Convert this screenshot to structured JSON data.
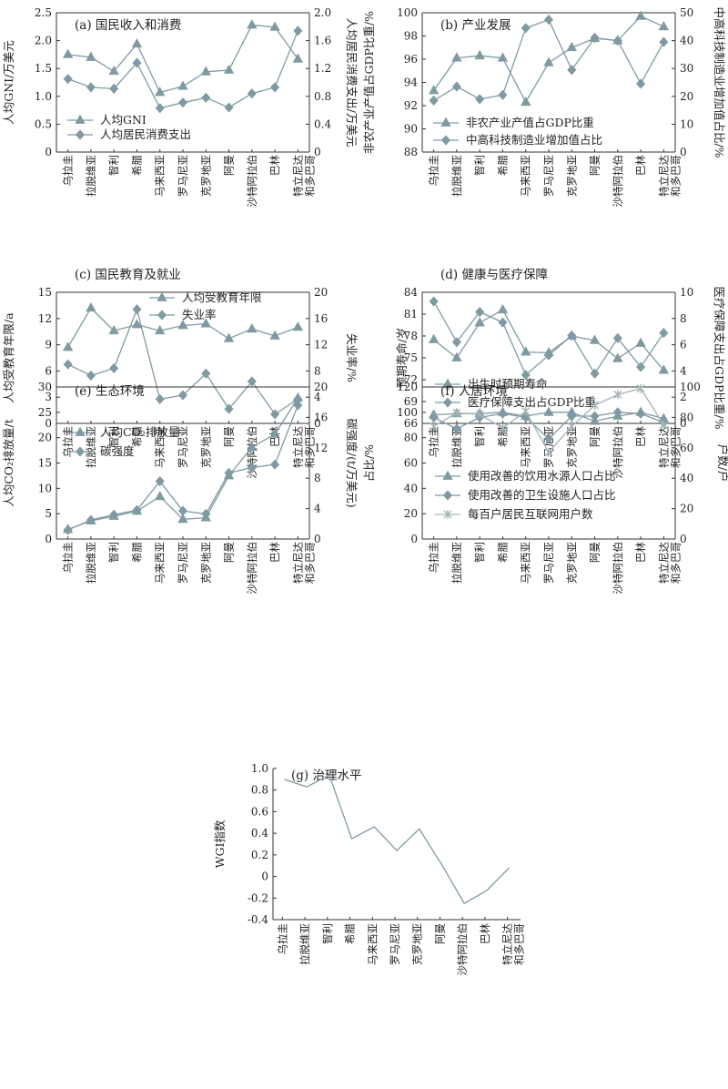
{
  "colors": {
    "series": "#7f9aa3",
    "axis": "#333333",
    "cross": "#a3b3b8"
  },
  "chart_data": [
    {
      "type": "line",
      "title": "(a) 国民收入和消费",
      "categories": [
        "乌拉圭",
        "拉脱维亚",
        "智利",
        "希腊",
        "马来西亚",
        "罗马尼亚",
        "克罗地亚",
        "阿曼",
        "沙特阿拉伯",
        "巴林",
        "特立尼达和多巴哥"
      ],
      "ylabel": "人均GNI/万美元",
      "ylim": [
        0,
        2.5
      ],
      "yticks": [
        "0",
        "0.5",
        "1.0",
        "1.5",
        "2.0",
        "2.5"
      ],
      "y2label": "人均居民消费支出/万美元",
      "y2lim": [
        0,
        2.0
      ],
      "y2ticks": [
        "0",
        "0.4",
        "0.8",
        "1.2",
        "1.6",
        "2.0"
      ],
      "series": [
        {
          "name": "人均GNI",
          "axis": "left",
          "marker": "triangle",
          "values": [
            1.75,
            1.7,
            1.45,
            1.94,
            1.07,
            1.18,
            1.44,
            1.47,
            2.28,
            2.24,
            1.67
          ]
        },
        {
          "name": "人均居民消费支出",
          "axis": "right",
          "marker": "diamond",
          "values": [
            1.05,
            0.93,
            0.91,
            1.28,
            0.63,
            0.71,
            0.78,
            0.64,
            0.84,
            0.93,
            1.74
          ]
        }
      ]
    },
    {
      "type": "line",
      "title": "(b) 产业发展",
      "categories": [
        "乌拉圭",
        "拉脱维亚",
        "智利",
        "希腊",
        "马来西亚",
        "罗马尼亚",
        "克罗地亚",
        "阿曼",
        "沙特阿拉伯",
        "巴林",
        "特立尼达和多巴哥"
      ],
      "ylabel": "非农产业产值占GDP比重/%",
      "ylim": [
        88,
        100
      ],
      "yticks": [
        "88",
        "90",
        "92",
        "94",
        "96",
        "98",
        "100"
      ],
      "y2label": "中高科技制造业增加值占比/%",
      "y2lim": [
        0,
        50
      ],
      "y2ticks": [
        "0",
        "10",
        "20",
        "30",
        "40",
        "50"
      ],
      "series": [
        {
          "name": "非农产业产值占GDP比重",
          "axis": "left",
          "marker": "triangle",
          "values": [
            93.3,
            96.1,
            96.3,
            96.1,
            92.3,
            95.7,
            97.0,
            97.8,
            97.6,
            99.7,
            98.8
          ]
        },
        {
          "name": "中高科技制造业增加值占比",
          "axis": "right",
          "marker": "diamond",
          "values": [
            18.5,
            23.5,
            19.0,
            20.5,
            44.5,
            47.5,
            29.5,
            41.0,
            40.0,
            24.5,
            39.5
          ]
        }
      ]
    },
    {
      "type": "line",
      "title": "(c) 国民教育及就业",
      "categories": [
        "乌拉圭",
        "拉脱维亚",
        "智利",
        "希腊",
        "马来西亚",
        "罗马尼亚",
        "克罗地亚",
        "阿曼",
        "沙特阿拉伯",
        "巴林",
        "特立尼达和多巴哥"
      ],
      "ylabel": "人均受教育年限/a",
      "ylim": [
        0,
        15
      ],
      "yticks": [
        "0",
        "3",
        "6",
        "9",
        "12",
        "15"
      ],
      "y2label": "失业率/%",
      "y2lim": [
        0,
        20
      ],
      "y2ticks": [
        "0",
        "4",
        "8",
        "12",
        "16",
        "20"
      ],
      "series": [
        {
          "name": "人均受教育年限",
          "axis": "left",
          "marker": "triangle",
          "values": [
            8.7,
            13.2,
            10.6,
            11.3,
            10.6,
            11.2,
            11.4,
            9.7,
            10.8,
            10.0,
            11.0
          ]
        },
        {
          "name": "失业率",
          "axis": "right",
          "marker": "diamond",
          "values": [
            9.0,
            7.3,
            8.4,
            17.4,
            3.7,
            4.3,
            7.6,
            2.2,
            6.4,
            1.4,
            3.7
          ]
        }
      ]
    },
    {
      "type": "line",
      "title": "(d) 健康与医疗保障",
      "categories": [
        "乌拉圭",
        "拉脱维亚",
        "智利",
        "希腊",
        "马来西亚",
        "罗马尼亚",
        "克罗地亚",
        "阿曼",
        "沙特阿拉伯",
        "巴林",
        "特立尼达和多巴哥"
      ],
      "ylabel": "预期寿命/岁",
      "ylim": [
        66,
        84
      ],
      "yticks": [
        "66",
        "69",
        "72",
        "75",
        "78",
        "81",
        "84"
      ],
      "y2label": "医疗保障支出占GDP比重/%",
      "y2lim": [
        0,
        10
      ],
      "y2ticks": [
        "0",
        "2",
        "4",
        "6",
        "8",
        "10"
      ],
      "series": [
        {
          "name": "出生时预期寿命",
          "axis": "left",
          "marker": "triangle",
          "values": [
            77.5,
            75.0,
            79.8,
            81.6,
            75.8,
            75.7,
            78.0,
            77.4,
            74.9,
            77.0,
            73.3
          ]
        },
        {
          "name": "医疗保障支出占GDP比重",
          "axis": "right",
          "marker": "diamond",
          "values": [
            9.3,
            6.2,
            8.5,
            7.7,
            3.7,
            5.2,
            6.7,
            3.8,
            6.5,
            4.3,
            6.9
          ]
        }
      ]
    },
    {
      "type": "line",
      "title": "(e) 生态环境",
      "categories": [
        "乌拉圭",
        "拉脱维亚",
        "智利",
        "希腊",
        "马来西亚",
        "罗马尼亚",
        "克罗地亚",
        "阿曼",
        "沙特阿拉伯",
        "巴林",
        "特立尼达和多巴哥"
      ],
      "ylabel": "人均CO₂排放量/t",
      "ylim": [
        0,
        30
      ],
      "yticks": [
        "0",
        "5",
        "10",
        "15",
        "20",
        "25",
        "30"
      ],
      "y2label": "碳强度/(t/万美元)",
      "y2lim": [
        0,
        20
      ],
      "y2ticks": [
        "0",
        "4",
        "8",
        "12",
        "16",
        "20"
      ],
      "series": [
        {
          "name": "人均CO₂排放量",
          "axis": "left",
          "marker": "triangle",
          "values": [
            1.9,
            3.6,
            4.5,
            5.5,
            8.4,
            3.9,
            4.2,
            12.5,
            18.1,
            20.7,
            27.8
          ]
        },
        {
          "name": "碳强度",
          "axis": "right",
          "marker": "diamond",
          "values": [
            1.2,
            2.5,
            3.2,
            3.8,
            7.6,
            3.7,
            3.3,
            8.7,
            9.4,
            9.8,
            17.6
          ]
        }
      ]
    },
    {
      "type": "line",
      "title": "(f) 人居环境",
      "categories": [
        "乌拉圭",
        "拉脱维亚",
        "智利",
        "希腊",
        "马来西亚",
        "罗马尼亚",
        "克罗地亚",
        "阿曼",
        "沙特阿拉伯",
        "巴林",
        "特立尼达和多巴哥"
      ],
      "ylabel": "占比/%",
      "ylim": [
        0,
        120
      ],
      "yticks": [
        "0",
        "20",
        "40",
        "60",
        "80",
        "100",
        "120"
      ],
      "y2label": "户数/户",
      "y2lim": [
        0,
        100
      ],
      "y2ticks": [
        "0",
        "20",
        "40",
        "60",
        "80",
        "100"
      ],
      "series": [
        {
          "name": "使用改善的饮用水源人口占比",
          "axis": "left",
          "marker": "triangle",
          "values": [
            98,
            99,
            99,
            100,
            97,
            100,
            100,
            93,
            97,
            100,
            95
          ]
        },
        {
          "name": "使用改善的卫生设施人口占比",
          "axis": "left",
          "marker": "diamond",
          "values": [
            96,
            87,
            96,
            99,
            96,
            79,
            97,
            97,
            100,
            99,
            92
          ]
        },
        {
          "name": "每百户居民互联网用户数",
          "axis": "right",
          "marker": "cross",
          "values": [
            74,
            83,
            82,
            73,
            84,
            57,
            74,
            88,
            95,
            99,
            75
          ]
        }
      ]
    },
    {
      "type": "line",
      "title": "(g) 治理水平",
      "categories": [
        "乌拉圭",
        "拉脱维亚",
        "智利",
        "希腊",
        "马来西亚",
        "罗马尼亚",
        "克罗地亚",
        "阿曼",
        "沙特阿拉伯",
        "巴林",
        "特立尼达和多巴哥"
      ],
      "ylabel": "WGI指数",
      "ylim": [
        -0.4,
        1.0
      ],
      "yticks": [
        "-0.4",
        "-0.2",
        "0",
        "0.2",
        "0.4",
        "0.6",
        "0.8",
        "1.0"
      ],
      "series": [
        {
          "name": "WGI指数",
          "axis": "left",
          "marker": "none",
          "values": [
            0.9,
            0.83,
            0.94,
            0.35,
            0.46,
            0.24,
            0.44,
            0.11,
            -0.25,
            -0.13,
            0.08
          ]
        }
      ]
    }
  ]
}
